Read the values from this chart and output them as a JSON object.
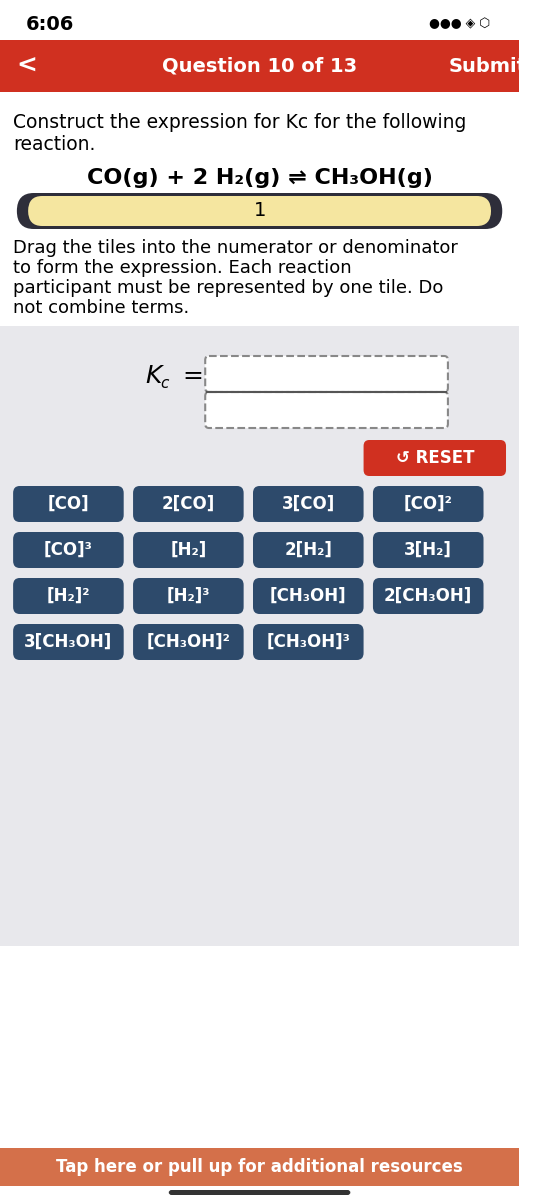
{
  "bg_color": "#ffffff",
  "light_bg": "#e8e8ec",
  "status_time": "6:06",
  "nav_bar_color": "#d03020",
  "nav_text": "Question 10 of 13",
  "nav_submit": "Submit",
  "title_line1": "Construct the expression for Kc for the following",
  "title_line2": "reaction.",
  "reaction": "CO(g) + 2 H₂(g) ⇌ CH₃OH(g)",
  "pill_bg": "#2e2e3a",
  "pill_inner": "#f5e6a0",
  "pill_text": "1",
  "desc_line1": "Drag the tiles into the numerator or denominator",
  "desc_line2": "to form the expression. Each reaction",
  "desc_line3": "participant must be represented by one tile. Do",
  "desc_line4": "not combine terms.",
  "kc_label": "K",
  "kc_sub": "c",
  "fraction_box_color": "#aaaaaa",
  "fraction_box_fill": "#ffffff",
  "tile_bg": "#2d4a6b",
  "tile_text_color": "#ffffff",
  "reset_bg": "#d03020",
  "reset_text": "↺ RESET",
  "tiles_row1": [
    "[CO]",
    "2[CO]",
    "3[CO]",
    "[CO]²"
  ],
  "tiles_row2": [
    "[CO]³",
    "[H₂]",
    "2[H₂]",
    "3[H₂]"
  ],
  "tiles_row3": [
    "[H₂]²",
    "[H₂]³",
    "[CH₃OH]",
    "2[CH₃OH]"
  ],
  "tiles_row4": [
    "3[CH₃OH]",
    "[CH₃OH]²",
    "[CH₃OH]³"
  ],
  "bottom_bar_color": "#d4704a",
  "bottom_bar_text": "Tap here or pull up for additional resources",
  "bottom_line_color": "#333333"
}
